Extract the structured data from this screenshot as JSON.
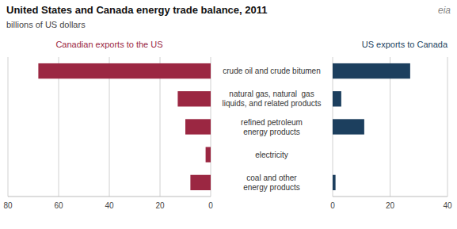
{
  "chart_data": [
    {
      "type": "bar",
      "orientation": "horizontal",
      "title": "United States and Canada energy trade balance, 2011",
      "subtitle": "billions of US dollars",
      "annotations": [
        "eia"
      ],
      "categories": [
        "crude oil and crude bitumen",
        "natural gas, natural  gas\nliquids, and related products",
        "refined petroleum\nenergy products",
        "electricity",
        "coal and other\nenergy products"
      ],
      "series": [
        {
          "name": "Canadian exports to the US",
          "color": "#9b2742",
          "values": [
            68,
            13,
            10,
            2,
            8
          ]
        }
      ],
      "xlim": [
        80,
        0
      ],
      "xticks": [
        80,
        60,
        40,
        20,
        0
      ],
      "grid": true
    },
    {
      "type": "bar",
      "orientation": "horizontal",
      "categories": [
        "crude oil and crude bitumen",
        "natural gas, natural  gas\nliquids, and related products",
        "refined petroleum\nenergy products",
        "electricity",
        "coal and other\nenergy products"
      ],
      "series": [
        {
          "name": "US exports to Canada",
          "color": "#1c3f5e",
          "values": [
            27,
            3,
            11,
            0,
            1
          ]
        }
      ],
      "xlim": [
        0,
        40
      ],
      "xticks": [
        0,
        20,
        40
      ],
      "grid": true
    }
  ]
}
